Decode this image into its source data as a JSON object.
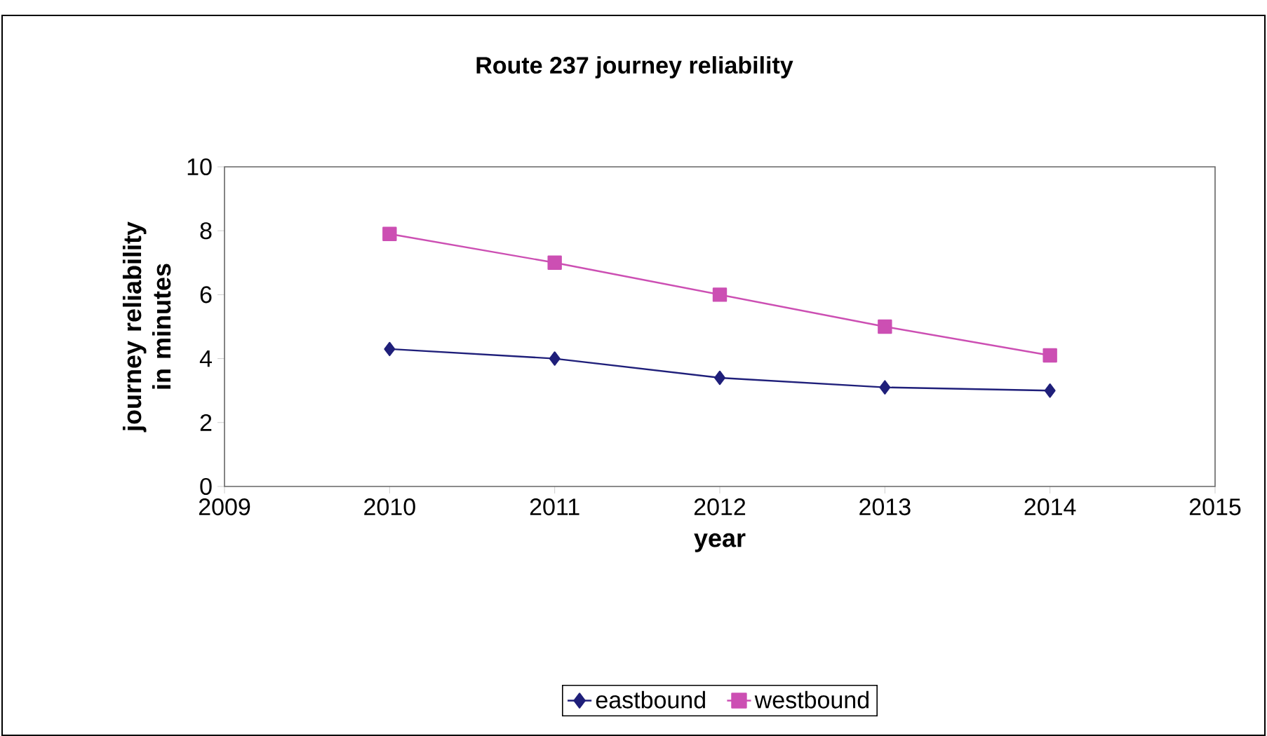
{
  "chart_data": {
    "type": "line",
    "title": "Route 237 journey reliability",
    "xlabel": "year",
    "ylabel": "journey reliability in minutes",
    "x": [
      2010,
      2011,
      2012,
      2013,
      2014
    ],
    "series": [
      {
        "name": "eastbound",
        "color": "#1f1f7a",
        "marker": "diamond",
        "values": [
          4.3,
          4.0,
          3.4,
          3.1,
          3.0
        ]
      },
      {
        "name": "westbound",
        "color": "#cc4fb3",
        "marker": "square",
        "values": [
          7.9,
          7.0,
          6.0,
          5.0,
          4.1
        ]
      }
    ],
    "xlim": [
      2009,
      2015
    ],
    "xticks": [
      2009,
      2010,
      2011,
      2012,
      2013,
      2014,
      2015
    ],
    "ylim": [
      0,
      10
    ],
    "yticks": [
      0,
      2,
      4,
      6,
      8,
      10
    ],
    "grid": false,
    "legend": "bottom",
    "line_style": "solid"
  }
}
